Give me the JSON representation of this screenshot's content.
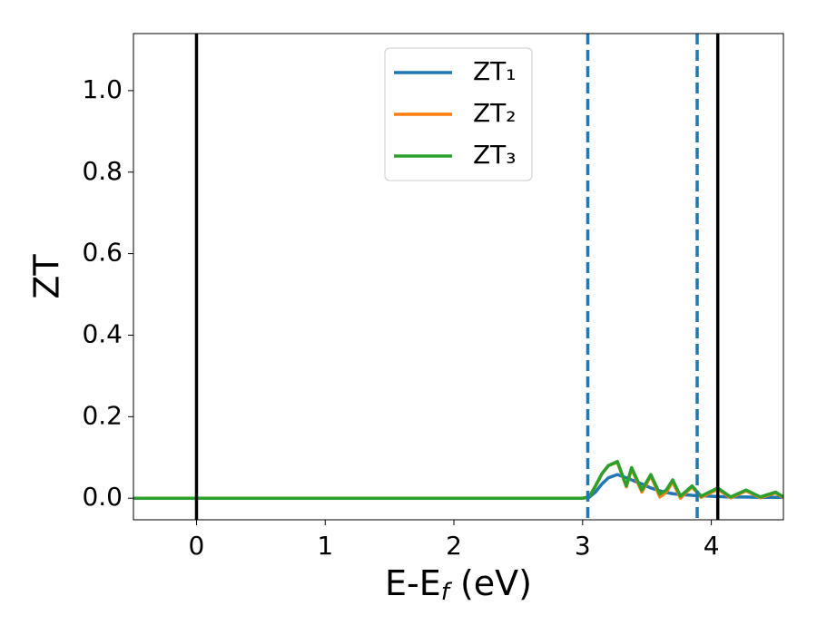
{
  "chart_data": {
    "type": "line",
    "xlabel": {
      "text": "E-E",
      "sub": "f",
      "after": " (eV)"
    },
    "ylabel": "ZT",
    "x": [
      -0.49,
      3.0,
      3.05,
      3.1,
      3.15,
      3.2,
      3.27,
      3.34,
      3.38,
      3.46,
      3.53,
      3.6,
      3.65,
      3.7,
      3.76,
      3.85,
      3.92,
      4.05,
      4.15,
      4.27,
      4.38,
      4.5,
      4.56
    ],
    "series": [
      {
        "name": "ZT₁",
        "color": "#1f77b4",
        "values": [
          0,
          0,
          0.002,
          0.015,
          0.035,
          0.05,
          0.058,
          0.05,
          0.045,
          0.035,
          0.025,
          0.018,
          0.014,
          0.011,
          0.009,
          0.007,
          0.006,
          0.004,
          0.003,
          0.003,
          0.002,
          0.002,
          0.002
        ]
      },
      {
        "name": "ZT₂",
        "color": "#ff7f0e",
        "values": [
          0,
          0,
          0.003,
          0.03,
          0.06,
          0.08,
          0.088,
          0.028,
          0.072,
          0.015,
          0.055,
          0.003,
          0.015,
          0.04,
          0.0,
          0.028,
          0.002,
          0.022,
          0.001,
          0.018,
          0.001,
          0.013,
          0.001
        ]
      },
      {
        "name": "ZT₃",
        "color": "#2ca02c",
        "values": [
          0,
          0,
          0.003,
          0.03,
          0.06,
          0.08,
          0.09,
          0.03,
          0.075,
          0.02,
          0.058,
          0.01,
          0.02,
          0.045,
          0.005,
          0.03,
          0.005,
          0.025,
          0.003,
          0.02,
          0.003,
          0.015,
          0.003
        ]
      }
    ],
    "vlines": [
      {
        "x": 0,
        "color": "#000000",
        "style": "solid"
      },
      {
        "x": 4.05,
        "color": "#000000",
        "style": "solid"
      },
      {
        "x": 3.04,
        "color": "#1f77b4",
        "style": "dashed"
      },
      {
        "x": 3.89,
        "color": "#1f77b4",
        "style": "dashed"
      }
    ],
    "xlim": [
      -0.49,
      4.56
    ],
    "ylim": [
      -0.053,
      1.14
    ],
    "xticks": [
      0,
      1,
      2,
      3,
      4
    ],
    "yticks": [
      {
        "value": 0,
        "label": "0.0"
      },
      {
        "value": 0.2,
        "label": "0.2"
      },
      {
        "value": 0.4,
        "label": "0.4"
      },
      {
        "value": 0.6,
        "label": "0.6"
      },
      {
        "value": 0.8,
        "label": "0.8"
      },
      {
        "value": 1,
        "label": "1.0"
      }
    ],
    "legend": "upper center",
    "grid": false
  }
}
